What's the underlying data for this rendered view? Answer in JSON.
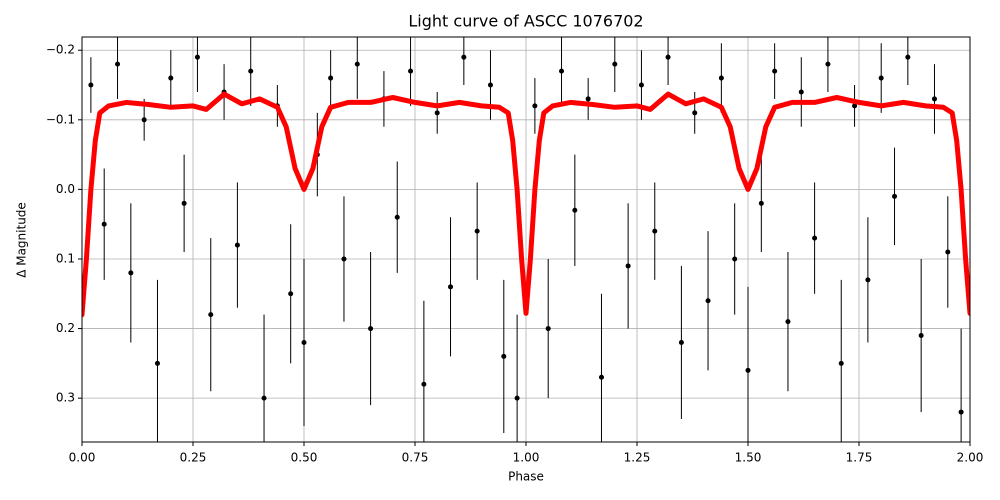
{
  "chart_data": {
    "type": "scatter",
    "title": "Light curve of ASCC 1076702",
    "x_label": "Phase",
    "y_label": "Δ Magnitude",
    "xlim": [
      0,
      2
    ],
    "ylim": [
      0.363,
      -0.219
    ],
    "xticks": [
      {
        "value": 0,
        "label": "0.00"
      },
      {
        "value": 0.25,
        "label": "0.25"
      },
      {
        "value": 0.5,
        "label": "0.50"
      },
      {
        "value": 0.75,
        "label": "0.75"
      },
      {
        "value": 1,
        "label": "1.00"
      },
      {
        "value": 1.25,
        "label": "1.25"
      },
      {
        "value": 1.5,
        "label": "1.50"
      },
      {
        "value": 1.75,
        "label": "1.75"
      },
      {
        "value": 2,
        "label": "2.00"
      }
    ],
    "yticks": [
      {
        "value": -0.2,
        "label": "−0.2"
      },
      {
        "value": -0.1,
        "label": "−0.1"
      },
      {
        "value": 0,
        "label": "0.0"
      },
      0.1,
      0.2,
      0.3
    ],
    "grid": true,
    "points": {
      "color": "#000000",
      "x": [
        0.02,
        0.05,
        0.08,
        0.11,
        0.14,
        0.17,
        0.2,
        0.23,
        0.26,
        0.29,
        0.32,
        0.35,
        0.38,
        0.41,
        0.44,
        0.47,
        0.5,
        0.53,
        0.56,
        0.59,
        0.62,
        0.65,
        0.68,
        0.71,
        0.74,
        0.77,
        0.8,
        0.83,
        0.86,
        0.89,
        0.92,
        0.95,
        0.98,
        1.02,
        1.05,
        1.08,
        1.11,
        1.14,
        1.17,
        1.2,
        1.23,
        1.26,
        1.29,
        1.32,
        1.35,
        1.38,
        1.41,
        1.44,
        1.47,
        1.5,
        1.53,
        1.56,
        1.59,
        1.62,
        1.65,
        1.68,
        1.71,
        1.74,
        1.77,
        1.8,
        1.83,
        1.86,
        1.89,
        1.92,
        1.95,
        1.98
      ],
      "y": [
        -0.15,
        0.05,
        -0.18,
        0.12,
        -0.1,
        0.25,
        -0.16,
        0.02,
        -0.19,
        0.18,
        -0.14,
        0.08,
        -0.17,
        0.3,
        -0.12,
        0.15,
        0.22,
        -0.05,
        -0.16,
        0.1,
        -0.18,
        0.2,
        -0.13,
        0.04,
        -0.17,
        0.28,
        -0.11,
        0.14,
        -0.19,
        0.06,
        -0.15,
        0.24,
        0.3,
        -0.12,
        0.2,
        -0.17,
        0.03,
        -0.13,
        0.27,
        -0.18,
        0.11,
        -0.15,
        0.06,
        -0.19,
        0.22,
        -0.11,
        0.16,
        -0.16,
        0.1,
        0.26,
        0.02,
        -0.17,
        0.19,
        -0.14,
        0.07,
        -0.18,
        0.25,
        -0.12,
        0.13,
        -0.16,
        0.01,
        -0.19,
        0.21,
        -0.13,
        0.09,
        0.32
      ],
      "yerr": [
        0.04,
        0.08,
        0.05,
        0.1,
        0.03,
        0.12,
        0.04,
        0.07,
        0.05,
        0.11,
        0.04,
        0.09,
        0.05,
        0.12,
        0.03,
        0.1,
        0.12,
        0.06,
        0.04,
        0.09,
        0.05,
        0.11,
        0.04,
        0.08,
        0.05,
        0.12,
        0.03,
        0.1,
        0.04,
        0.07,
        0.05,
        0.11,
        0.12,
        0.04,
        0.1,
        0.05,
        0.08,
        0.03,
        0.12,
        0.04,
        0.09,
        0.05,
        0.07,
        0.04,
        0.11,
        0.03,
        0.1,
        0.05,
        0.08,
        0.12,
        0.07,
        0.04,
        0.1,
        0.05,
        0.08,
        0.04,
        0.12,
        0.03,
        0.09,
        0.05,
        0.07,
        0.04,
        0.11,
        0.05,
        0.08,
        0.12
      ]
    },
    "curve": {
      "color": "#ff0000",
      "x": [
        0,
        0.01,
        0.02,
        0.03,
        0.04,
        0.06,
        0.1,
        0.15,
        0.2,
        0.25,
        0.28,
        0.32,
        0.36,
        0.4,
        0.44,
        0.46,
        0.48,
        0.5,
        0.52,
        0.54,
        0.56,
        0.6,
        0.65,
        0.7,
        0.75,
        0.8,
        0.85,
        0.9,
        0.94,
        0.96,
        0.97,
        0.98,
        0.99,
        1,
        1.01,
        1.02,
        1.03,
        1.04,
        1.06,
        1.1,
        1.15,
        1.2,
        1.25,
        1.28,
        1.32,
        1.36,
        1.4,
        1.44,
        1.46,
        1.48,
        1.5,
        1.52,
        1.54,
        1.56,
        1.6,
        1.65,
        1.7,
        1.75,
        1.8,
        1.85,
        1.9,
        1.94,
        1.96,
        1.97,
        1.98,
        1.99,
        2
      ],
      "y": [
        0.18,
        0.1,
        0,
        -0.07,
        -0.11,
        -0.12,
        -0.125,
        -0.122,
        -0.118,
        -0.12,
        -0.115,
        -0.137,
        -0.123,
        -0.13,
        -0.118,
        -0.09,
        -0.03,
        0,
        -0.03,
        -0.09,
        -0.118,
        -0.125,
        -0.125,
        -0.132,
        -0.125,
        -0.12,
        -0.125,
        -0.12,
        -0.118,
        -0.11,
        -0.07,
        0,
        0.1,
        0.178,
        0.1,
        0,
        -0.07,
        -0.11,
        -0.12,
        -0.125,
        -0.122,
        -0.118,
        -0.12,
        -0.115,
        -0.137,
        -0.123,
        -0.13,
        -0.118,
        -0.09,
        -0.03,
        0,
        -0.03,
        -0.09,
        -0.118,
        -0.125,
        -0.125,
        -0.132,
        -0.125,
        -0.12,
        -0.125,
        -0.12,
        -0.118,
        -0.11,
        -0.07,
        0,
        0.1,
        0.178
      ]
    }
  }
}
